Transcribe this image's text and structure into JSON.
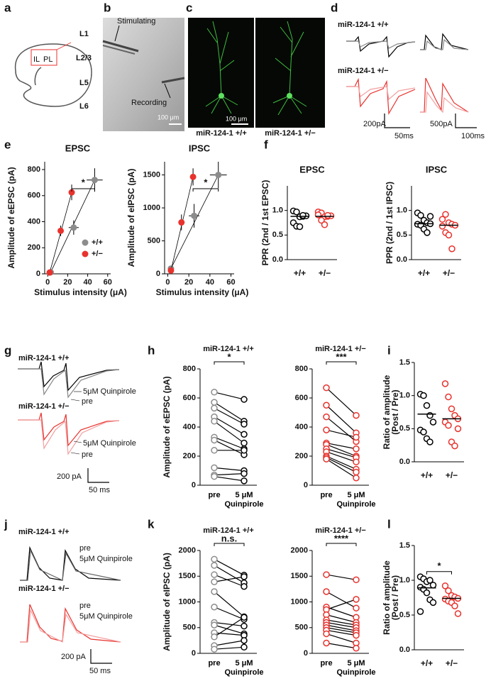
{
  "panel_labels": [
    "a",
    "b",
    "c",
    "d",
    "e",
    "f",
    "g",
    "h",
    "i",
    "j",
    "k",
    "l"
  ],
  "panel_a": {
    "regions": [
      "IL",
      "PL"
    ]
  },
  "panel_b": {
    "electrodes": [
      "Stimulating",
      "Recording"
    ],
    "layers": [
      "L1",
      "L2/3",
      "L5",
      "L6"
    ],
    "scale_bar": "100 μm"
  },
  "panel_c": {
    "scale_bar": "100 μm",
    "captions": [
      "miR-124-1 +/+",
      "miR-124-1 +/−"
    ]
  },
  "panel_d": {
    "genotypes": [
      "miR-124-1 +/+",
      "miR-124-1 +/−"
    ],
    "scale_bars": [
      "200pA",
      "50ms",
      "500pA",
      "100ms"
    ]
  },
  "panel_g": {
    "genotypes": [
      "miR-124-1 +/+",
      "miR-124-1 +/−"
    ],
    "trace_labels": [
      "5μM Quinpirole",
      "pre",
      "5μM Quinpirole",
      "pre"
    ],
    "scale_bars": [
      "200 pA",
      "50 ms"
    ]
  },
  "panel_j": {
    "genotypes": [
      "miR-124-1 +/+",
      "miR-124-1 +/−"
    ],
    "trace_labels": [
      "pre",
      "5μM Quinpirole",
      "pre",
      "5μM Quinpirole"
    ],
    "scale_bars": [
      "200 pA",
      "50 ms"
    ]
  },
  "chart_data": [
    {
      "type": "scatter",
      "title": "EPSC",
      "ylabel": "Amplitude of eEPSC (pA)",
      "xlabel": "Stimulus intensity (μA)",
      "xlim": [
        -3,
        63
      ],
      "xticks": [
        0,
        20,
        40,
        60
      ],
      "ylim": [
        0,
        860
      ],
      "yticks": [
        0,
        200,
        400,
        600,
        800
      ],
      "legend": "lower right",
      "significance": "*",
      "series": [
        {
          "name": "+/+",
          "color": "#8c8c8c",
          "x": [
            3,
            26,
            47
          ],
          "values": [
            12,
            355,
            720
          ],
          "xerr": [
            null,
            5,
            8
          ],
          "yerr": [
            null,
            55,
            90
          ]
        },
        {
          "name": "+/−",
          "color": "#e8322d",
          "x": [
            2,
            13,
            24
          ],
          "values": [
            10,
            330,
            625
          ],
          "xerr": [
            null,
            2,
            2
          ],
          "yerr": [
            null,
            40,
            60
          ]
        }
      ]
    },
    {
      "type": "scatter",
      "title": "IPSC",
      "ylabel": "Amplitude of eIPSC (pA)",
      "xlabel": "Stimulus intensity (μA)",
      "xlim": [
        -3,
        63
      ],
      "xticks": [
        0,
        20,
        40,
        60
      ],
      "ylim": [
        0,
        1700
      ],
      "yticks": [
        0,
        500,
        1000,
        1500
      ],
      "significance": "*",
      "series": [
        {
          "color": "#8c8c8c",
          "x": [
            3,
            25,
            48
          ],
          "values": [
            80,
            880,
            1500
          ],
          "xerr": [
            null,
            5,
            8
          ],
          "yerr": [
            null,
            180,
            200
          ]
        },
        {
          "color": "#e8322d",
          "x": [
            3,
            13,
            24
          ],
          "values": [
            50,
            780,
            1470
          ],
          "xerr": [
            null,
            2,
            2
          ],
          "yerr": [
            null,
            120,
            130
          ]
        }
      ]
    },
    {
      "type": "dot",
      "title": "EPSC",
      "ylabel": "PPR (2nd / 1st EPSC)",
      "ylim": [
        0,
        1.5
      ],
      "yticks": [
        {
          "value": 0,
          "label": "0.0"
        },
        0.5,
        {
          "value": 1,
          "label": "1.0"
        }
      ],
      "categories": [
        "+/+",
        "+/−"
      ],
      "colors": [
        "#000000",
        "#e8322d"
      ],
      "means": [
        0.88,
        0.88
      ],
      "values": [
        [
          0.99,
          0.97,
          0.87,
          0.88,
          0.89,
          0.75,
          0.68,
          0.67,
          0.9
        ],
        [
          0.97,
          0.95,
          0.87,
          0.88,
          0.89,
          0.91,
          0.8,
          0.71,
          0.9
        ]
      ]
    },
    {
      "type": "dot",
      "title": "IPSC",
      "ylabel": "PPR (2nd / 1st IPSC)",
      "ylim": [
        0,
        1.5
      ],
      "yticks": [
        {
          "value": 0,
          "label": "0.0"
        },
        0.5,
        {
          "value": 1,
          "label": "1.0"
        }
      ],
      "categories": [
        "+/+",
        "+/−"
      ],
      "colors": [
        "#000000",
        "#e8322d"
      ],
      "means": [
        0.73,
        0.7
      ],
      "values": [
        [
          0.95,
          0.9,
          0.8,
          0.75,
          0.73,
          0.72,
          0.7,
          0.62,
          0.55,
          0.88
        ],
        [
          0.82,
          0.92,
          0.75,
          0.72,
          0.7,
          0.68,
          0.55,
          0.5,
          0.22
        ]
      ]
    },
    {
      "type": "paired",
      "title": "miR-124-1 +/+",
      "ylabel": "Amplitude of eEPSC (pA)",
      "ylim": [
        0,
        800
      ],
      "yticks": [
        0,
        200,
        400,
        600,
        800
      ],
      "categories": [
        "pre",
        "5 μM Quinpirole"
      ],
      "colors": [
        "#8c8c8c",
        "#000000"
      ],
      "significance": "*",
      "values": [
        [
          640,
          590
        ],
        [
          570,
          440
        ],
        [
          530,
          420
        ],
        [
          470,
          350
        ],
        [
          440,
          290
        ],
        [
          330,
          250
        ],
        [
          310,
          210
        ],
        [
          240,
          240
        ],
        [
          120,
          100
        ],
        [
          70,
          80
        ],
        [
          60,
          30
        ]
      ]
    },
    {
      "type": "paired",
      "title": "miR-124-1 +/−",
      "ylim": [
        0,
        800
      ],
      "yticks": [
        0,
        200,
        400,
        600,
        800
      ],
      "categories": [
        "pre",
        "5 μM Quinpirole"
      ],
      "colors": [
        "#e8322d",
        "#e8322d"
      ],
      "significance": "***",
      "values": [
        [
          670,
          480
        ],
        [
          550,
          360
        ],
        [
          470,
          300
        ],
        [
          380,
          330
        ],
        [
          290,
          250
        ],
        [
          280,
          200
        ],
        [
          250,
          190
        ],
        [
          230,
          160
        ],
        [
          200,
          110
        ],
        [
          190,
          90
        ],
        [
          180,
          50
        ]
      ]
    },
    {
      "type": "dot",
      "ylabel": [
        "Ratio of amplitude",
        "(Post / Pre)"
      ],
      "ylim": [
        0,
        1.5
      ],
      "yticks": [
        {
          "value": 0,
          "label": "0.0"
        },
        0.5,
        {
          "value": 1,
          "label": "1.0"
        },
        1.5
      ],
      "categories": [
        "+/+",
        "+/−"
      ],
      "colors": [
        "#000000",
        "#e8322d"
      ],
      "means": [
        0.72,
        0.65
      ],
      "values": [
        [
          1.02,
          1.0,
          0.85,
          0.7,
          0.6,
          0.48,
          0.45,
          0.35,
          0.3
        ],
        [
          1.18,
          0.98,
          0.8,
          0.7,
          0.65,
          0.6,
          0.55,
          0.3,
          0.24,
          0.5
        ]
      ]
    },
    {
      "type": "paired",
      "title": "miR-124-1 +/+",
      "ylabel": "Amplitude of eIPSC (pA)",
      "ylim": [
        0,
        2000
      ],
      "yticks": [
        0,
        500,
        1000,
        1500,
        2000
      ],
      "categories": [
        "pre",
        "5 μM Quinpirole"
      ],
      "colors": [
        "#8c8c8c",
        "#000000"
      ],
      "significance": "n.s.",
      "values": [
        [
          1830,
          1520
        ],
        [
          1710,
          1370
        ],
        [
          1530,
          1300
        ],
        [
          1390,
          1490
        ],
        [
          1200,
          710
        ],
        [
          900,
          660
        ],
        [
          600,
          530
        ],
        [
          550,
          380
        ],
        [
          400,
          350
        ],
        [
          320,
          700
        ],
        [
          150,
          250
        ],
        [
          80,
          120
        ]
      ]
    },
    {
      "type": "paired",
      "title": "miR-124-1 +/−",
      "ylim": [
        0,
        2000
      ],
      "yticks": [
        0,
        500,
        1000,
        1500,
        2000
      ],
      "categories": [
        "pre",
        "5 μM Quinpirole"
      ],
      "colors": [
        "#e8322d",
        "#e8322d"
      ],
      "significance": "****",
      "values": [
        [
          1530,
          1430
        ],
        [
          1200,
          880
        ],
        [
          900,
          700
        ],
        [
          850,
          1050
        ],
        [
          750,
          600
        ],
        [
          650,
          550
        ],
        [
          600,
          500
        ],
        [
          550,
          440
        ],
        [
          500,
          400
        ],
        [
          450,
          350
        ],
        [
          380,
          200
        ],
        [
          200,
          100
        ]
      ]
    },
    {
      "type": "dot",
      "ylabel": [
        "Ratio of amplitude",
        "(Post / Pre)"
      ],
      "ylim": [
        0,
        1.5
      ],
      "yticks": [
        {
          "value": 0,
          "label": "0.0"
        },
        0.5,
        {
          "value": 1,
          "label": "1.0"
        },
        1.5
      ],
      "categories": [
        "+/+",
        "+/−"
      ],
      "colors": [
        "#000000",
        "#e8322d"
      ],
      "means": [
        0.89,
        0.74
      ],
      "significance": "*",
      "values": [
        [
          1.05,
          1.02,
          0.98,
          1.0,
          0.93,
          0.9,
          0.87,
          0.82,
          0.72,
          0.68,
          0.55
        ],
        [
          0.92,
          0.85,
          0.78,
          0.76,
          0.74,
          0.73,
          0.7,
          0.68,
          0.63,
          0.52
        ]
      ]
    }
  ]
}
